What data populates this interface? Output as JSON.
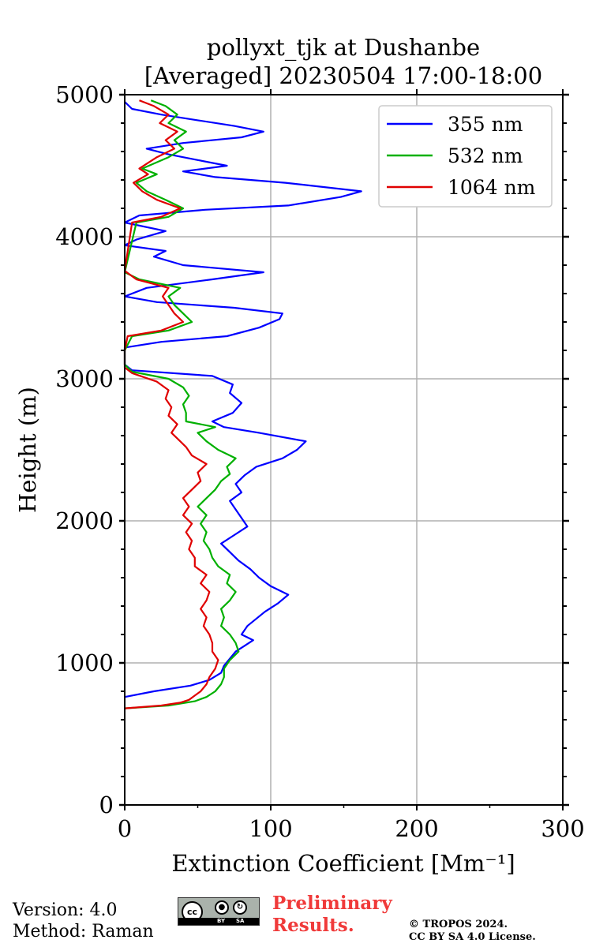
{
  "chart_data": {
    "type": "line",
    "title": "pollyxt_tjk at Dushanbe",
    "subtitle": "[Averaged] 20230504 17:00-18:00",
    "xlabel": "Extinction Coefficient [Mm⁻¹]",
    "ylabel": "Height (m)",
    "xlim": [
      0,
      300
    ],
    "ylim": [
      0,
      5000
    ],
    "xticks": [
      0,
      100,
      200,
      300
    ],
    "yticks": [
      0,
      1000,
      2000,
      3000,
      4000,
      5000
    ],
    "grid": true,
    "legend_position": "top-right",
    "series": [
      {
        "name": "355 nm",
        "color": "#0000ff",
        "points": [
          [
            0,
            760
          ],
          [
            20,
            800
          ],
          [
            45,
            840
          ],
          [
            58,
            880
          ],
          [
            66,
            930
          ],
          [
            68,
            980
          ],
          [
            72,
            1030
          ],
          [
            76,
            1080
          ],
          [
            82,
            1120
          ],
          [
            88,
            1160
          ],
          [
            80,
            1200
          ],
          [
            84,
            1260
          ],
          [
            90,
            1310
          ],
          [
            96,
            1360
          ],
          [
            105,
            1420
          ],
          [
            112,
            1480
          ],
          [
            100,
            1540
          ],
          [
            92,
            1600
          ],
          [
            86,
            1660
          ],
          [
            78,
            1720
          ],
          [
            72,
            1780
          ],
          [
            66,
            1840
          ],
          [
            75,
            1900
          ],
          [
            84,
            1960
          ],
          [
            80,
            2020
          ],
          [
            76,
            2080
          ],
          [
            72,
            2140
          ],
          [
            80,
            2200
          ],
          [
            76,
            2260
          ],
          [
            82,
            2320
          ],
          [
            90,
            2380
          ],
          [
            108,
            2440
          ],
          [
            118,
            2500
          ],
          [
            124,
            2560
          ],
          [
            92,
            2620
          ],
          [
            68,
            2660
          ],
          [
            60,
            2700
          ],
          [
            74,
            2760
          ],
          [
            80,
            2830
          ],
          [
            72,
            2900
          ],
          [
            74,
            2960
          ],
          [
            60,
            3020
          ],
          [
            5,
            3060
          ],
          [
            0,
            3100
          ],
          [
            0,
            3160
          ],
          [
            0,
            3220
          ],
          [
            25,
            3260
          ],
          [
            70,
            3300
          ],
          [
            92,
            3360
          ],
          [
            106,
            3420
          ],
          [
            108,
            3460
          ],
          [
            75,
            3500
          ],
          [
            22,
            3540
          ],
          [
            0,
            3580
          ],
          [
            15,
            3640
          ],
          [
            60,
            3700
          ],
          [
            95,
            3750
          ],
          [
            40,
            3800
          ],
          [
            20,
            3860
          ],
          [
            28,
            3900
          ],
          [
            0,
            3940
          ],
          [
            8,
            3980
          ],
          [
            28,
            4040
          ],
          [
            0,
            4100
          ],
          [
            10,
            4150
          ],
          [
            55,
            4190
          ],
          [
            112,
            4220
          ],
          [
            148,
            4280
          ],
          [
            162,
            4320
          ],
          [
            110,
            4380
          ],
          [
            62,
            4420
          ],
          [
            40,
            4460
          ],
          [
            70,
            4500
          ],
          [
            50,
            4540
          ],
          [
            30,
            4580
          ],
          [
            15,
            4620
          ],
          [
            40,
            4660
          ],
          [
            80,
            4700
          ],
          [
            95,
            4740
          ],
          [
            75,
            4780
          ],
          [
            50,
            4820
          ],
          [
            25,
            4860
          ],
          [
            5,
            4900
          ],
          [
            0,
            4950
          ]
        ]
      },
      {
        "name": "532 nm",
        "color": "#00b000",
        "points": [
          [
            0,
            680
          ],
          [
            30,
            700
          ],
          [
            48,
            730
          ],
          [
            56,
            760
          ],
          [
            62,
            800
          ],
          [
            66,
            850
          ],
          [
            68,
            900
          ],
          [
            68,
            960
          ],
          [
            72,
            1020
          ],
          [
            78,
            1080
          ],
          [
            76,
            1140
          ],
          [
            72,
            1200
          ],
          [
            66,
            1260
          ],
          [
            68,
            1320
          ],
          [
            66,
            1380
          ],
          [
            72,
            1440
          ],
          [
            76,
            1500
          ],
          [
            70,
            1560
          ],
          [
            72,
            1620
          ],
          [
            64,
            1680
          ],
          [
            60,
            1740
          ],
          [
            58,
            1800
          ],
          [
            54,
            1860
          ],
          [
            56,
            1920
          ],
          [
            52,
            1980
          ],
          [
            56,
            2040
          ],
          [
            50,
            2100
          ],
          [
            56,
            2160
          ],
          [
            62,
            2220
          ],
          [
            66,
            2280
          ],
          [
            72,
            2330
          ],
          [
            70,
            2380
          ],
          [
            76,
            2440
          ],
          [
            64,
            2500
          ],
          [
            56,
            2560
          ],
          [
            50,
            2620
          ],
          [
            62,
            2660
          ],
          [
            42,
            2700
          ],
          [
            42,
            2760
          ],
          [
            40,
            2820
          ],
          [
            44,
            2880
          ],
          [
            40,
            2940
          ],
          [
            30,
            3000
          ],
          [
            5,
            3050
          ],
          [
            0,
            3100
          ],
          [
            0,
            3200
          ],
          [
            5,
            3300
          ],
          [
            30,
            3340
          ],
          [
            46,
            3400
          ],
          [
            40,
            3460
          ],
          [
            34,
            3520
          ],
          [
            30,
            3580
          ],
          [
            38,
            3640
          ],
          [
            10,
            3700
          ],
          [
            0,
            3750
          ],
          [
            8,
            4100
          ],
          [
            30,
            4140
          ],
          [
            40,
            4200
          ],
          [
            28,
            4260
          ],
          [
            15,
            4320
          ],
          [
            8,
            4380
          ],
          [
            22,
            4440
          ],
          [
            12,
            4480
          ],
          [
            30,
            4560
          ],
          [
            40,
            4620
          ],
          [
            34,
            4680
          ],
          [
            42,
            4740
          ],
          [
            30,
            4800
          ],
          [
            36,
            4860
          ],
          [
            28,
            4920
          ],
          [
            18,
            4960
          ]
        ]
      },
      {
        "name": "1064 nm",
        "color": "#e00000",
        "points": [
          [
            0,
            680
          ],
          [
            25,
            700
          ],
          [
            38,
            720
          ],
          [
            44,
            740
          ],
          [
            48,
            770
          ],
          [
            52,
            800
          ],
          [
            56,
            850
          ],
          [
            58,
            900
          ],
          [
            62,
            960
          ],
          [
            64,
            1020
          ],
          [
            60,
            1080
          ],
          [
            60,
            1140
          ],
          [
            58,
            1200
          ],
          [
            54,
            1260
          ],
          [
            56,
            1320
          ],
          [
            52,
            1380
          ],
          [
            56,
            1440
          ],
          [
            58,
            1500
          ],
          [
            52,
            1560
          ],
          [
            56,
            1620
          ],
          [
            48,
            1680
          ],
          [
            48,
            1740
          ],
          [
            44,
            1800
          ],
          [
            46,
            1860
          ],
          [
            42,
            1920
          ],
          [
            46,
            1980
          ],
          [
            40,
            2040
          ],
          [
            44,
            2100
          ],
          [
            40,
            2160
          ],
          [
            46,
            2220
          ],
          [
            52,
            2280
          ],
          [
            50,
            2340
          ],
          [
            56,
            2400
          ],
          [
            46,
            2460
          ],
          [
            42,
            2520
          ],
          [
            36,
            2580
          ],
          [
            32,
            2620
          ],
          [
            36,
            2680
          ],
          [
            30,
            2740
          ],
          [
            32,
            2800
          ],
          [
            28,
            2860
          ],
          [
            30,
            2920
          ],
          [
            22,
            2980
          ],
          [
            5,
            3040
          ],
          [
            0,
            3080
          ],
          [
            0,
            3200
          ],
          [
            2,
            3300
          ],
          [
            25,
            3340
          ],
          [
            40,
            3400
          ],
          [
            34,
            3460
          ],
          [
            30,
            3520
          ],
          [
            26,
            3580
          ],
          [
            30,
            3640
          ],
          [
            8,
            3700
          ],
          [
            0,
            3760
          ],
          [
            5,
            4100
          ],
          [
            25,
            4140
          ],
          [
            38,
            4200
          ],
          [
            22,
            4260
          ],
          [
            12,
            4320
          ],
          [
            6,
            4380
          ],
          [
            16,
            4440
          ],
          [
            10,
            4480
          ],
          [
            22,
            4560
          ],
          [
            34,
            4620
          ],
          [
            28,
            4680
          ],
          [
            36,
            4740
          ],
          [
            24,
            4800
          ],
          [
            30,
            4860
          ],
          [
            20,
            4920
          ],
          [
            10,
            4960
          ]
        ]
      }
    ]
  },
  "footer": {
    "version": "Version: 4.0",
    "method": "Method: Raman",
    "license_badge": {
      "cc": "cc",
      "by": "BY",
      "sa": "SA"
    },
    "preliminary_line1": "Preliminary",
    "preliminary_line2": "Results.",
    "copyright_line1": "© TROPOS 2024.",
    "copyright_line2": "CC BY SA 4.0 License."
  }
}
